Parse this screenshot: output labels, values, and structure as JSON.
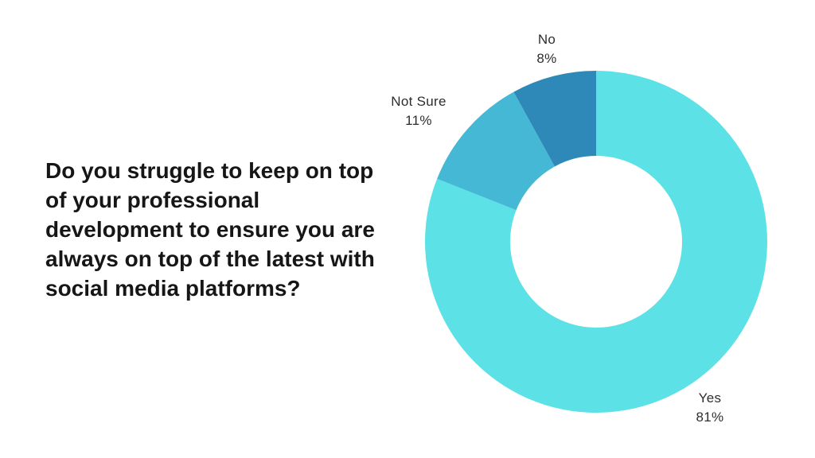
{
  "page": {
    "background": "#FFFFFF"
  },
  "question": {
    "text": "Do you struggle to keep on top of your professional development to ensure you are always on top of the latest with social media platforms?",
    "lines": [
      "Do you struggle to keep on top",
      "of your professional",
      "development to ensure you are",
      "always on top of the latest with",
      "social media platforms?"
    ]
  },
  "chart_data": {
    "type": "pie",
    "subtype": "donut",
    "title": "Do you struggle to keep on top of your professional development to ensure you are always on top of the latest with social media platforms?",
    "categories": [
      "Yes",
      "Not Sure",
      "No"
    ],
    "values": [
      81,
      11,
      8
    ],
    "unit": "%",
    "start_angle_deg": 0,
    "direction": "clockwise",
    "inner_radius_ratio": 0.5,
    "legend_position": "none",
    "grid": false,
    "background": "#FFFFFF",
    "label_color": "#2D2D2D",
    "slices": [
      {
        "label": "Yes",
        "value": 81,
        "value_label": "81%",
        "color": "#5CE1E6"
      },
      {
        "label": "Not Sure",
        "value": 11,
        "value_label": "11%",
        "color": "#44B8D5"
      },
      {
        "label": "No",
        "value": 8,
        "value_label": "8%",
        "color": "#2E89B8"
      }
    ]
  }
}
